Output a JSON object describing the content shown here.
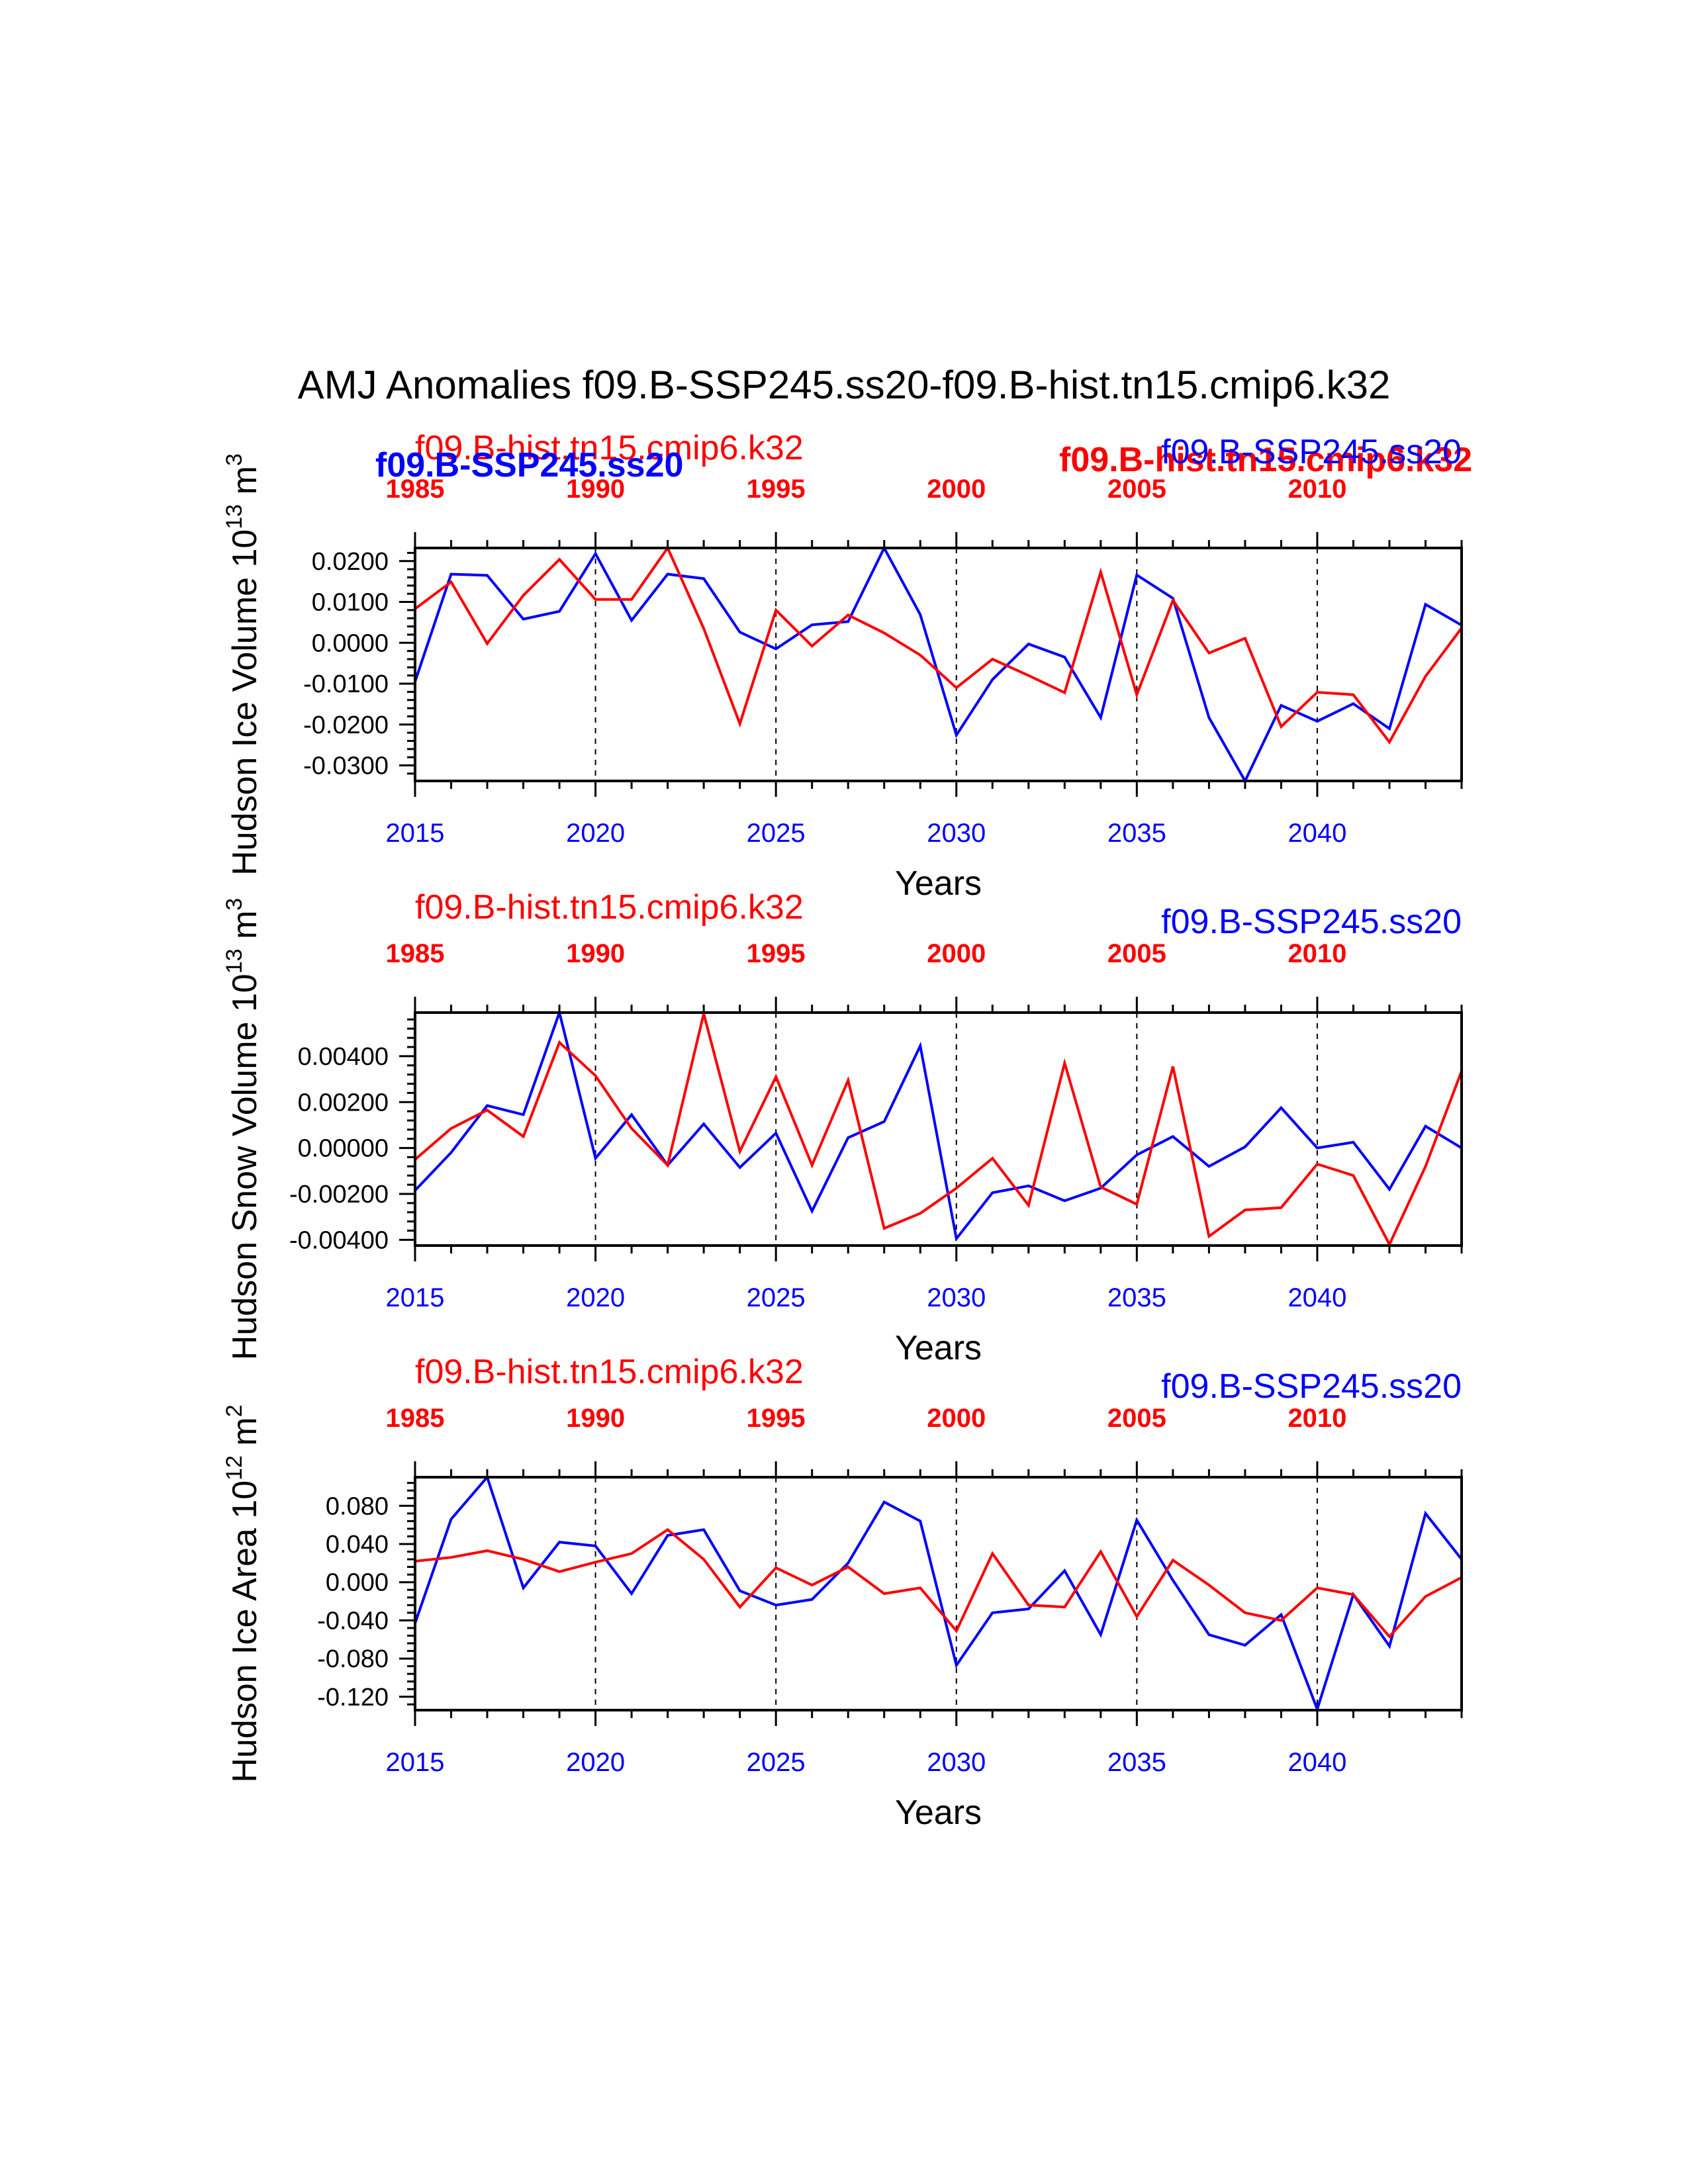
{
  "title": "AMJ Anomalies f09.B-SSP245.ss20-f09.B-hist.tn15.cmip6.k32",
  "colors": {
    "ssp": "#0000ff",
    "hist": "#ff0000",
    "axis": "#000000"
  },
  "legend": {
    "hist": "f09.B-hist.tn15.cmip6.k32",
    "ssp": "f09.B-SSP245.ss20"
  },
  "chart_data": [
    {
      "type": "line",
      "title": "",
      "ylabel": {
        "text": "Hudson Ice Volume 10",
        "exp": "13",
        "unit": " m",
        "unit_exp": "3"
      },
      "xlabel": "Years",
      "xlim": [
        2015,
        2044
      ],
      "x_ticks": [
        "2015",
        "2020",
        "2025",
        "2030",
        "2035",
        "2040"
      ],
      "top_xlim": [
        1985,
        2014
      ],
      "top_ticks": [
        "1985",
        "1990",
        "1995",
        "2000",
        "2005",
        "2010"
      ],
      "ylim": [
        -0.0338,
        0.0232
      ],
      "y_ticks": [
        "0.0200",
        "0.0100",
        "0.0000",
        "-0.0100",
        "-0.0200",
        "-0.0300"
      ],
      "y_tick_values": [
        0.02,
        0.01,
        0.0,
        -0.01,
        -0.02,
        -0.03
      ],
      "minor_step": 0.002,
      "grid": "dashed vertical lines at 5-year major ticks",
      "legend_style": "overlapping",
      "x": [
        2015,
        2016,
        2017,
        2018,
        2019,
        2020,
        2021,
        2022,
        2023,
        2024,
        2025,
        2026,
        2027,
        2028,
        2029,
        2030,
        2031,
        2032,
        2033,
        2034,
        2035,
        2036,
        2037,
        2038,
        2039,
        2040,
        2041,
        2042,
        2043,
        2044
      ],
      "series": [
        {
          "name": "f09.B-SSP245.ss20",
          "color": "#0000ff",
          "values": [
            -0.0095,
            0.0168,
            0.0165,
            0.0058,
            0.0077,
            0.0218,
            0.0055,
            0.0168,
            0.0157,
            0.0026,
            -0.0015,
            0.0044,
            0.0052,
            0.0232,
            0.0069,
            -0.0226,
            -0.009,
            -0.0003,
            -0.0035,
            -0.0183,
            0.0166,
            0.0109,
            -0.0183,
            -0.0338,
            -0.0153,
            -0.0192,
            -0.0149,
            -0.021,
            0.0094,
            0.0043
          ]
        },
        {
          "name": "f09.B-hist.tn15.cmip6.k32",
          "color": "#ff0000",
          "values": [
            0.0083,
            0.0149,
            -0.0002,
            0.0116,
            0.0204,
            0.0106,
            0.0106,
            0.0232,
            0.0035,
            -0.0198,
            0.008,
            -0.0008,
            0.0068,
            0.0024,
            -0.003,
            -0.011,
            -0.004,
            -0.008,
            -0.0122,
            0.0173,
            -0.0127,
            0.0104,
            -0.0025,
            0.0011,
            -0.0205,
            -0.0121,
            -0.0127,
            -0.0243,
            -0.0082,
            0.0036
          ]
        }
      ]
    },
    {
      "type": "line",
      "title": "",
      "ylabel": {
        "text": "Hudson Snow Volume 10",
        "exp": "13",
        "unit": " m",
        "unit_exp": "3"
      },
      "xlabel": "Years",
      "xlim": [
        2015,
        2044
      ],
      "x_ticks": [
        "2015",
        "2020",
        "2025",
        "2030",
        "2035",
        "2040"
      ],
      "top_xlim": [
        1985,
        2014
      ],
      "top_ticks": [
        "1985",
        "1990",
        "1995",
        "2000",
        "2005",
        "2010"
      ],
      "ylim": [
        -0.00425,
        0.0059
      ],
      "y_ticks": [
        "0.00400",
        "0.00200",
        "0.00000",
        "-0.00200",
        "-0.00400"
      ],
      "y_tick_values": [
        0.004,
        0.002,
        0.0,
        -0.002,
        -0.004
      ],
      "minor_step": 0.0004,
      "grid": "dashed vertical lines at 5-year major ticks",
      "legend_style": "separate",
      "x": [
        2015,
        2016,
        2017,
        2018,
        2019,
        2020,
        2021,
        2022,
        2023,
        2024,
        2025,
        2026,
        2027,
        2028,
        2029,
        2030,
        2031,
        2032,
        2033,
        2034,
        2035,
        2036,
        2037,
        2038,
        2039,
        2040,
        2041,
        2042,
        2043,
        2044
      ],
      "series": [
        {
          "name": "f09.B-SSP245.ss20",
          "color": "#0000ff",
          "values": [
            -0.00185,
            -0.0002,
            0.00185,
            0.00145,
            0.0059,
            -0.00045,
            0.00145,
            -0.00075,
            0.00105,
            -0.00085,
            0.00065,
            -0.00275,
            0.00045,
            0.00115,
            0.00445,
            -0.00395,
            -0.00195,
            -0.00165,
            -0.0023,
            -0.00175,
            -0.0003,
            0.0005,
            -0.0008,
            5e-05,
            0.00175,
            0.0,
            0.00025,
            -0.0018,
            0.00095,
            0.0
          ]
        },
        {
          "name": "f09.B-hist.tn15.cmip6.k32",
          "color": "#ff0000",
          "values": [
            -0.0005,
            0.00085,
            0.00165,
            0.0005,
            0.0046,
            0.00315,
            0.00085,
            -0.00075,
            0.00585,
            -0.00015,
            0.0031,
            -0.00075,
            0.00295,
            -0.0035,
            -0.00285,
            -0.00175,
            -0.00045,
            -0.0025,
            0.0037,
            -0.0017,
            -0.00245,
            0.00355,
            -0.00385,
            -0.0027,
            -0.0026,
            -0.0007,
            -0.0012,
            -0.0042,
            -0.0008,
            0.00335
          ]
        }
      ]
    },
    {
      "type": "line",
      "title": "",
      "ylabel": {
        "text": "Hudson Ice Area 10",
        "exp": "12",
        "unit": " m",
        "unit_exp": "2"
      },
      "xlabel": "Years",
      "xlim": [
        2015,
        2044
      ],
      "x_ticks": [
        "2015",
        "2020",
        "2025",
        "2030",
        "2035",
        "2040"
      ],
      "top_xlim": [
        1985,
        2014
      ],
      "top_ticks": [
        "1985",
        "1990",
        "1995",
        "2000",
        "2005",
        "2010"
      ],
      "ylim": [
        -0.134,
        0.11
      ],
      "y_ticks": [
        "0.080",
        "0.040",
        "0.000",
        "-0.040",
        "-0.080",
        "-0.120"
      ],
      "y_tick_values": [
        0.08,
        0.04,
        0.0,
        -0.04,
        -0.08,
        -0.12
      ],
      "minor_step": 0.008,
      "grid": "dashed vertical lines at 5-year major ticks",
      "legend_style": "separate",
      "x": [
        2015,
        2016,
        2017,
        2018,
        2019,
        2020,
        2021,
        2022,
        2023,
        2024,
        2025,
        2026,
        2027,
        2028,
        2029,
        2030,
        2031,
        2032,
        2033,
        2034,
        2035,
        2036,
        2037,
        2038,
        2039,
        2040,
        2041,
        2042,
        2043,
        2044
      ],
      "series": [
        {
          "name": "f09.B-SSP245.ss20",
          "color": "#0000ff",
          "values": [
            -0.043,
            0.066,
            0.11,
            -0.006,
            0.042,
            0.038,
            -0.012,
            0.049,
            0.055,
            -0.009,
            -0.024,
            -0.018,
            0.02,
            0.084,
            0.064,
            -0.087,
            -0.032,
            -0.028,
            0.012,
            -0.055,
            0.065,
            0.002,
            -0.055,
            -0.066,
            -0.034,
            -0.133,
            -0.013,
            -0.067,
            0.072,
            0.024
          ]
        },
        {
          "name": "f09.B-hist.tn15.cmip6.k32",
          "color": "#ff0000",
          "values": [
            0.022,
            0.026,
            0.033,
            0.024,
            0.011,
            0.021,
            0.03,
            0.055,
            0.024,
            -0.026,
            0.015,
            -0.003,
            0.016,
            -0.012,
            -0.006,
            -0.051,
            0.03,
            -0.024,
            -0.026,
            0.032,
            -0.036,
            0.023,
            -0.003,
            -0.032,
            -0.04,
            -0.006,
            -0.013,
            -0.057,
            -0.015,
            0.005
          ]
        }
      ]
    }
  ]
}
